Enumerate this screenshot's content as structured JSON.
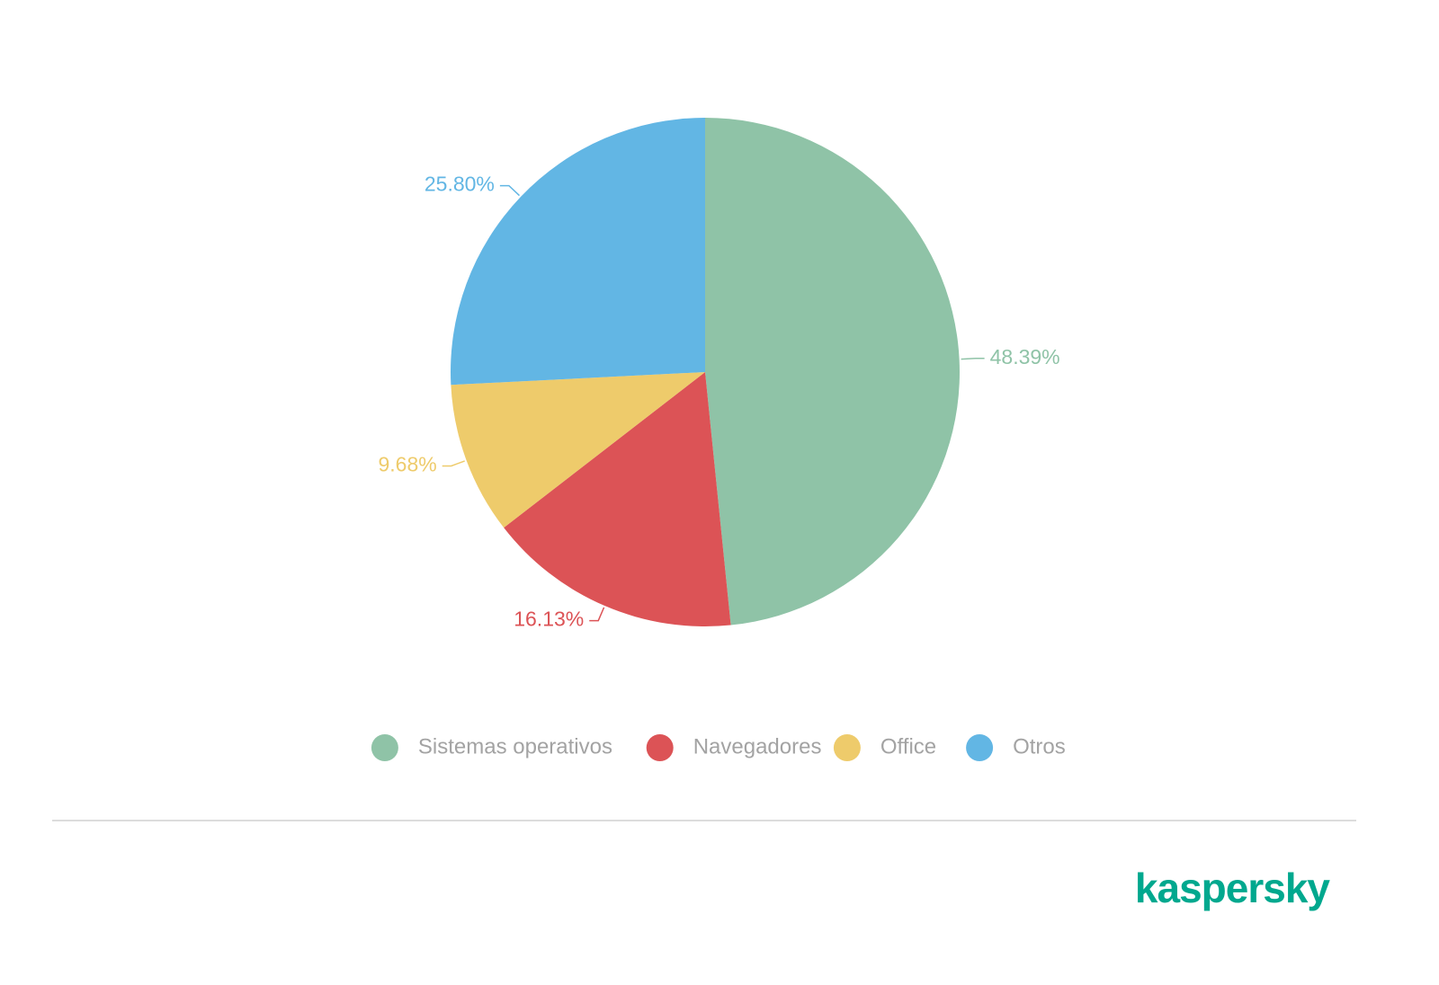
{
  "chart_data": {
    "type": "pie",
    "categories": [
      "Sistemas operativos",
      "Navegadores",
      "Office",
      "Otros"
    ],
    "values": [
      48.39,
      16.13,
      9.68,
      25.8
    ],
    "value_labels": [
      "48.39%",
      "16.13%",
      "9.68%",
      "25.80%"
    ],
    "colors": [
      "#8fc3a7",
      "#dc5356",
      "#eecb6b",
      "#62b6e4"
    ],
    "legend": "bottom"
  },
  "footer": {
    "logo": "kaspersky"
  }
}
